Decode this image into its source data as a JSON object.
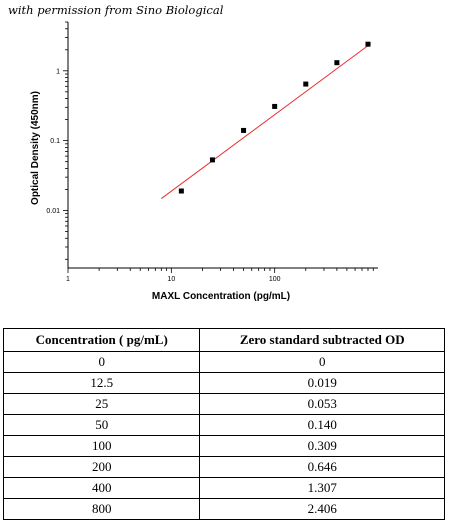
{
  "credit": "with permission from Sino Biological",
  "chart_data": {
    "type": "scatter",
    "xlabel": "MAXL Concentration (pg/mL)",
    "ylabel": "Optical Density (450nm)",
    "x_scale": "log",
    "y_scale": "log",
    "xlim": [
      1,
      1000
    ],
    "ylim": [
      0.0015,
      5
    ],
    "x_ticks": [
      1,
      10,
      100
    ],
    "x_tick_labels": [
      "1",
      "10",
      "100"
    ],
    "y_ticks": [
      0.01,
      0.1,
      1
    ],
    "y_tick_labels": [
      "0.01",
      "0.1",
      "1"
    ],
    "points": {
      "x": [
        12.5,
        25,
        50,
        100,
        200,
        400,
        800
      ],
      "y": [
        0.019,
        0.053,
        0.14,
        0.309,
        0.646,
        1.307,
        2.406
      ]
    },
    "fit_line": {
      "color": "#e8302c",
      "x": [
        8,
        850
      ],
      "y": [
        0.0148,
        2.45
      ]
    },
    "grid": false,
    "point_color": "#000000"
  },
  "table": {
    "headers": [
      "Concentration ( pg/mL)",
      "Zero standard subtracted OD"
    ],
    "rows": [
      [
        "0",
        "0"
      ],
      [
        "12.5",
        "0.019"
      ],
      [
        "25",
        "0.053"
      ],
      [
        "50",
        "0.140"
      ],
      [
        "100",
        "0.309"
      ],
      [
        "200",
        "0.646"
      ],
      [
        "400",
        "1.307"
      ],
      [
        "800",
        "2.406"
      ]
    ]
  }
}
